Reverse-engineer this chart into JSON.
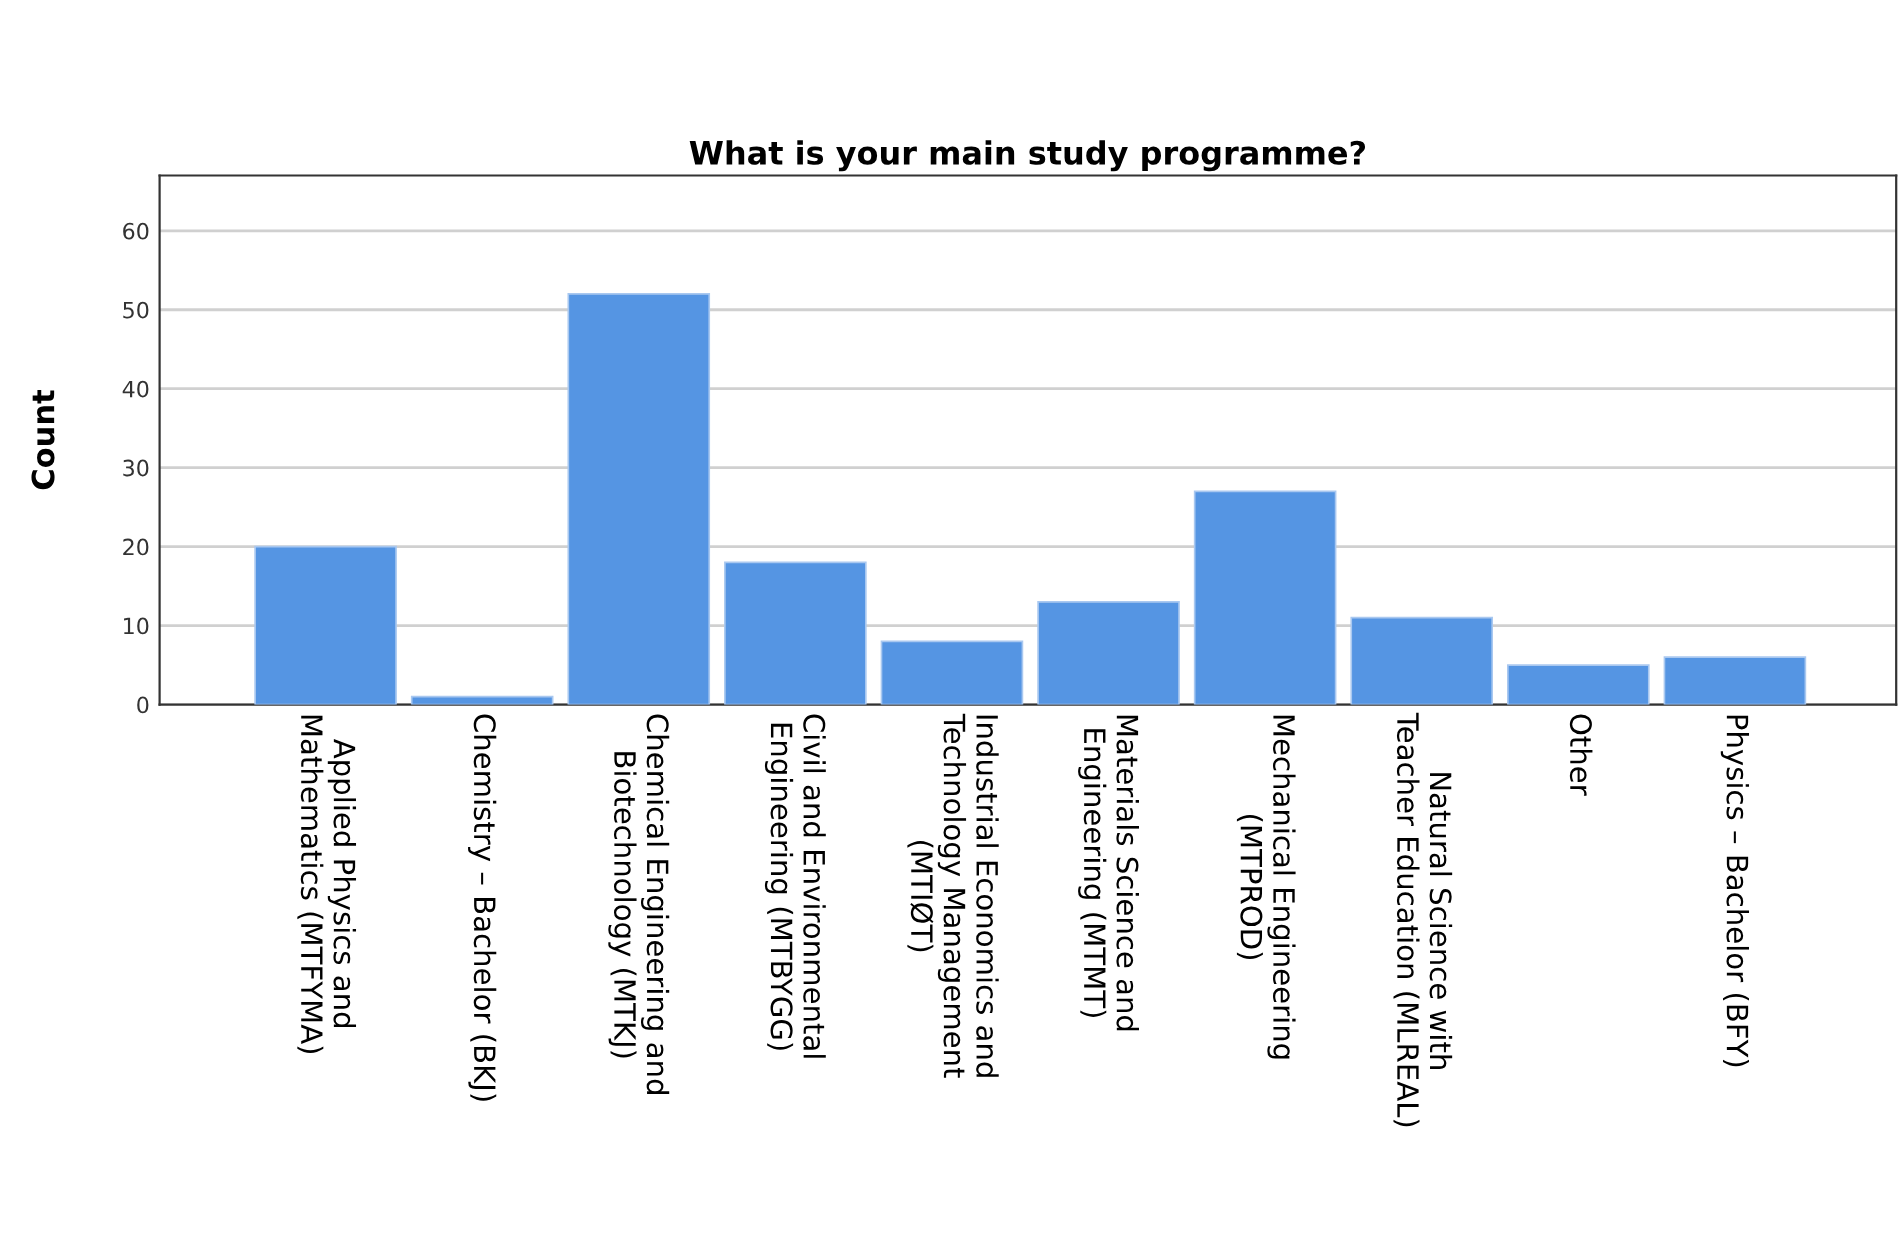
{
  "chart_data": {
    "type": "bar",
    "title": "What is your main study programme?",
    "ylabel": "Count",
    "categories": [
      "Applied Physics and\nMathematics (MTFYMA)",
      "Chemistry – Bachelor (BKJ)",
      "Chemical Engineering and\nBiotechnology (MTKJ)",
      "Civil and Environmental\nEngineering (MTBYGG)",
      "Industrial Economics and\nTechnology Management\n(MTIØT)",
      "Materials Science and\nEngineering (MTMT)",
      "Mechanical Engineering\n(MTPROD)",
      "Natural Science with\nTeacher Education (MLREAL)",
      "Other",
      "Physics – Bachelor (BFY)"
    ],
    "values": [
      20,
      1,
      52,
      18,
      8,
      13,
      27,
      11,
      5,
      6
    ],
    "color": "#5595e3",
    "ylim": [
      0,
      67
    ],
    "yticks": [
      0,
      10,
      20,
      30,
      40,
      50,
      60
    ],
    "grid": "y"
  }
}
